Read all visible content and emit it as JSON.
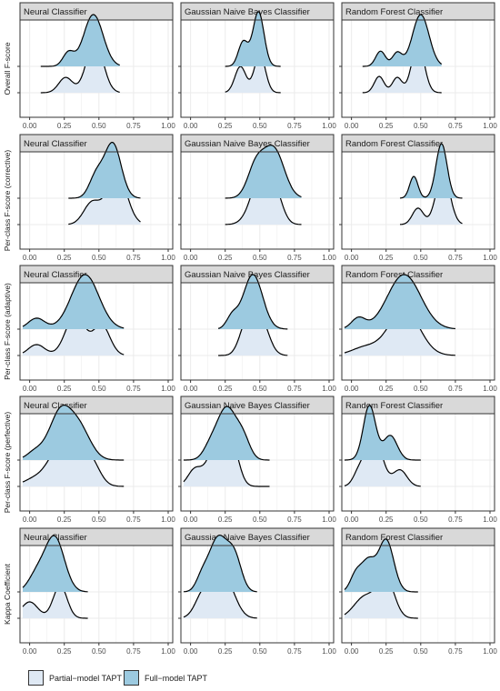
{
  "chart_data": {
    "type": "ridgeline-density",
    "rows": [
      {
        "ylabel": "Overall F-score",
        "panels": [
          {
            "title": "Neural Classifier",
            "partial": {
              "min": 0.08,
              "max": 0.65,
              "peaks": [
                [
                  0.26,
                  0.28,
                  0.05
                ],
                [
                  0.47,
                  0.95,
                  0.06
                ]
              ]
            },
            "full": {
              "min": 0.08,
              "max": 0.65,
              "peaks": [
                [
                  0.28,
                  0.25,
                  0.04
                ],
                [
                  0.46,
                  0.95,
                  0.07
                ]
              ]
            }
          },
          {
            "title": "Gaussian Naive Bayes Classifier",
            "partial": {
              "min": 0.25,
              "max": 0.65,
              "peaks": [
                [
                  0.36,
                  0.48,
                  0.04
                ],
                [
                  0.5,
                  0.7,
                  0.04
                ]
              ]
            },
            "full": {
              "min": 0.25,
              "max": 0.65,
              "peaks": [
                [
                  0.38,
                  0.45,
                  0.035
                ],
                [
                  0.49,
                  1.0,
                  0.04
                ]
              ]
            }
          },
          {
            "title": "Random Forest Classifier",
            "partial": {
              "min": 0.08,
              "max": 0.65,
              "peaks": [
                [
                  0.2,
                  0.3,
                  0.035
                ],
                [
                  0.33,
                  0.28,
                  0.035
                ],
                [
                  0.48,
                  0.9,
                  0.045
                ]
              ]
            },
            "full": {
              "min": 0.08,
              "max": 0.65,
              "peaks": [
                [
                  0.21,
                  0.28,
                  0.035
                ],
                [
                  0.33,
                  0.25,
                  0.035
                ],
                [
                  0.5,
                  0.95,
                  0.06
                ]
              ]
            }
          }
        ]
      },
      {
        "ylabel": "Per-class F-score (corrective)",
        "panels": [
          {
            "title": "Neural Classifier",
            "partial": {
              "min": 0.28,
              "max": 0.8,
              "peaks": [
                [
                  0.45,
                  0.4,
                  0.06
                ],
                [
                  0.63,
                  0.95,
                  0.07
                ]
              ]
            },
            "full": {
              "min": 0.28,
              "max": 0.8,
              "peaks": [
                [
                  0.48,
                  0.4,
                  0.05
                ],
                [
                  0.6,
                  1.0,
                  0.06
                ]
              ]
            }
          },
          {
            "title": "Gaussian Naive Bayes Classifier",
            "partial": {
              "min": 0.25,
              "max": 0.8,
              "peaks": [
                [
                  0.52,
                  1.0,
                  0.075
                ],
                [
                  0.62,
                  0.3,
                  0.05
                ]
              ]
            },
            "full": {
              "min": 0.25,
              "max": 0.8,
              "peaks": [
                [
                  0.47,
                  0.55,
                  0.06
                ],
                [
                  0.6,
                  0.9,
                  0.075
                ]
              ]
            }
          },
          {
            "title": "Random Forest Classifier",
            "partial": {
              "min": 0.35,
              "max": 0.8,
              "peaks": [
                [
                  0.48,
                  0.3,
                  0.04
                ],
                [
                  0.66,
                  0.95,
                  0.05
                ]
              ]
            },
            "full": {
              "min": 0.35,
              "max": 0.8,
              "peaks": [
                [
                  0.45,
                  0.4,
                  0.03
                ],
                [
                  0.65,
                  1.0,
                  0.04
                ]
              ]
            }
          }
        ]
      },
      {
        "ylabel": "Per-class F-score (adaptive)",
        "panels": [
          {
            "title": "Neural Classifier",
            "partial": {
              "min": -0.05,
              "max": 0.68,
              "peaks": [
                [
                  0.05,
                  0.2,
                  0.06
                ],
                [
                  0.33,
                  0.75,
                  0.07
                ],
                [
                  0.52,
                  0.55,
                  0.06
                ]
              ]
            },
            "full": {
              "min": -0.05,
              "max": 0.68,
              "peaks": [
                [
                  0.05,
                  0.2,
                  0.06
                ],
                [
                  0.4,
                  1.0,
                  0.1
                ]
              ]
            }
          },
          {
            "title": "Gaussian Naive Bayes Classifier",
            "partial": {
              "min": 0.2,
              "max": 0.7,
              "peaks": [
                [
                  0.4,
                  0.5,
                  0.05
                ],
                [
                  0.5,
                  0.7,
                  0.06
                ]
              ]
            },
            "full": {
              "min": 0.2,
              "max": 0.7,
              "peaks": [
                [
                  0.3,
                  0.22,
                  0.04
                ],
                [
                  0.45,
                  1.0,
                  0.07
                ]
              ]
            }
          },
          {
            "title": "Random Forest Classifier",
            "partial": {
              "min": -0.05,
              "max": 0.75,
              "peaks": [
                [
                  0.1,
                  0.15,
                  0.1
                ],
                [
                  0.38,
                  0.85,
                  0.11
                ]
              ]
            },
            "full": {
              "min": -0.05,
              "max": 0.75,
              "peaks": [
                [
                  0.05,
                  0.2,
                  0.05
                ],
                [
                  0.38,
                  1.0,
                  0.12
                ]
              ]
            }
          }
        ]
      },
      {
        "ylabel": "Per-class F-score (perfective)",
        "panels": [
          {
            "title": "Neural Classifier",
            "partial": {
              "min": -0.05,
              "max": 0.68,
              "peaks": [
                [
                  0.02,
                  0.1,
                  0.08
                ],
                [
                  0.27,
                  0.95,
                  0.11
                ],
                [
                  0.45,
                  0.3,
                  0.06
                ]
              ]
            },
            "full": {
              "min": -0.05,
              "max": 0.68,
              "peaks": [
                [
                  0.04,
                  0.15,
                  0.06
                ],
                [
                  0.22,
                  0.85,
                  0.08
                ],
                [
                  0.36,
                  0.55,
                  0.08
                ]
              ]
            }
          },
          {
            "title": "Gaussian Naive Bayes Classifier",
            "partial": {
              "min": -0.05,
              "max": 0.57,
              "peaks": [
                [
                  0.03,
                  0.3,
                  0.05
                ],
                [
                  0.2,
                  0.85,
                  0.07
                ],
                [
                  0.3,
                  0.6,
                  0.05
                ]
              ]
            },
            "full": {
              "min": -0.05,
              "max": 0.57,
              "peaks": [
                [
                  0.14,
                  0.2,
                  0.05
                ],
                [
                  0.26,
                  0.95,
                  0.07
                ],
                [
                  0.38,
                  0.35,
                  0.05
                ]
              ]
            }
          },
          {
            "title": "Random Forest Classifier",
            "partial": {
              "min": -0.05,
              "max": 0.5,
              "peaks": [
                [
                  0.05,
                  0.2,
                  0.04
                ],
                [
                  0.16,
                  0.95,
                  0.06
                ],
                [
                  0.35,
                  0.3,
                  0.05
                ]
              ]
            },
            "full": {
              "min": -0.05,
              "max": 0.5,
              "peaks": [
                [
                  0.13,
                  1.0,
                  0.045
                ],
                [
                  0.28,
                  0.45,
                  0.05
                ]
              ]
            }
          }
        ]
      },
      {
        "ylabel": "Kappa Coefficient",
        "panels": [
          {
            "title": "Neural Classifier",
            "partial": {
              "min": -0.05,
              "max": 0.42,
              "peaks": [
                [
                  0.0,
                  0.3,
                  0.06
                ],
                [
                  0.22,
                  0.6,
                  0.05
                ]
              ]
            },
            "full": {
              "min": -0.05,
              "max": 0.42,
              "peaks": [
                [
                  0.05,
                  0.3,
                  0.06
                ],
                [
                  0.18,
                  1.0,
                  0.07
                ]
              ]
            }
          },
          {
            "title": "Gaussian Naive Bayes Classifier",
            "partial": {
              "min": -0.05,
              "max": 0.48,
              "peaks": [
                [
                  0.1,
                  0.5,
                  0.06
                ],
                [
                  0.25,
                  0.7,
                  0.07
                ]
              ]
            },
            "full": {
              "min": -0.05,
              "max": 0.48,
              "peaks": [
                [
                  0.08,
                  0.2,
                  0.04
                ],
                [
                  0.2,
                  1.0,
                  0.07
                ],
                [
                  0.32,
                  0.55,
                  0.05
                ]
              ]
            }
          },
          {
            "title": "Random Forest Classifier",
            "partial": {
              "min": -0.05,
              "max": 0.48,
              "peaks": [
                [
                  0.1,
                  0.4,
                  0.08
                ],
                [
                  0.25,
                  0.7,
                  0.06
                ]
              ]
            },
            "full": {
              "min": -0.05,
              "max": 0.48,
              "peaks": [
                [
                  0.03,
                  0.3,
                  0.04
                ],
                [
                  0.12,
                  0.55,
                  0.05
                ],
                [
                  0.25,
                  0.95,
                  0.055
                ]
              ]
            }
          }
        ]
      }
    ],
    "xlim": [
      -0.05,
      1.0
    ],
    "x_ticks": [
      0.0,
      0.25,
      0.5,
      0.75,
      1.0
    ],
    "x_tick_labels": [
      "0.00",
      "0.25",
      "0.50",
      "0.75",
      "1.00"
    ],
    "grid": true,
    "legend_position": "bottom-left",
    "legend": [
      {
        "name": "Partial−model TAPT",
        "color": "#dfe9f4"
      },
      {
        "name": "Full−model TAPT",
        "color": "#9ccae0"
      }
    ]
  }
}
